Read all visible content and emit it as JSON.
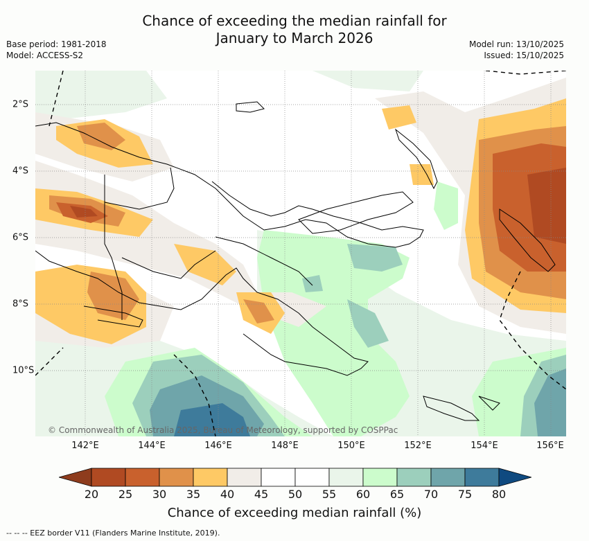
{
  "title_line1": "Chance of exceeding the median rainfall for",
  "title_line2": "January to March 2026",
  "base_period": "Base period: 1981-2018",
  "model": "Model: ACCESS-S2",
  "model_run": "Model run: 13/10/2025",
  "issued": "Issued: 15/10/2025",
  "copyright": "© Commonwealth of Australia 2025, Bureau of Meteorology, supported by COSPPac",
  "x_ticks": [
    "142°E",
    "144°E",
    "146°E",
    "148°E",
    "150°E",
    "152°E",
    "154°E",
    "156°E"
  ],
  "y_ticks": [
    "2°S",
    "4°S",
    "6°S",
    "8°S",
    "10°S"
  ],
  "colorbar": {
    "labels": [
      "20",
      "25",
      "30",
      "35",
      "40",
      "45",
      "50",
      "55",
      "60",
      "65",
      "70",
      "75",
      "80"
    ],
    "colors": [
      "#b04a22",
      "#c9612d",
      "#e0914a",
      "#fec965",
      "#f1ede8",
      "#ffffff",
      "#ffffff",
      "#eaf5ea",
      "#ccfccc",
      "#9ccfbc",
      "#6fa5aa",
      "#3e7b9b"
    ],
    "under_color": "#8e3c1d",
    "over_color": "#0f4a80",
    "title": "Chance of exceeding median rainfall (%)"
  },
  "legend_text": "-- -- -- EEZ border V11 (Flanders Marine Institute, 2019)."
}
